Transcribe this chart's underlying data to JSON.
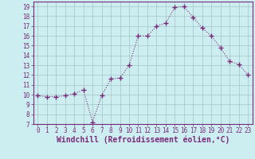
{
  "x": [
    0,
    1,
    2,
    3,
    4,
    5,
    6,
    7,
    8,
    9,
    10,
    11,
    12,
    13,
    14,
    15,
    16,
    17,
    18,
    19,
    20,
    21,
    22,
    23
  ],
  "y": [
    9.9,
    9.8,
    9.8,
    9.9,
    10.1,
    10.5,
    7.2,
    9.9,
    11.6,
    11.7,
    13.0,
    16.0,
    16.0,
    17.0,
    17.3,
    18.9,
    19.0,
    17.9,
    16.8,
    16.0,
    14.8,
    13.4,
    13.1,
    12.0
  ],
  "line_color": "#7a2a7a",
  "marker": "+",
  "marker_size": 4,
  "marker_linewidth": 1.0,
  "bg_color": "#cceef0",
  "grid_color": "#aacccc",
  "xlabel": "Windchill (Refroidissement éolien,°C)",
  "xlim": [
    -0.5,
    23.5
  ],
  "ylim": [
    7,
    19.5
  ],
  "yticks": [
    7,
    8,
    9,
    10,
    11,
    12,
    13,
    14,
    15,
    16,
    17,
    18,
    19
  ],
  "xticks": [
    0,
    1,
    2,
    3,
    4,
    5,
    6,
    7,
    8,
    9,
    10,
    11,
    12,
    13,
    14,
    15,
    16,
    17,
    18,
    19,
    20,
    21,
    22,
    23
  ],
  "tick_color": "#7a2a7a",
  "tick_fontsize": 5.5,
  "xlabel_fontsize": 7.0,
  "line_width": 0.8
}
